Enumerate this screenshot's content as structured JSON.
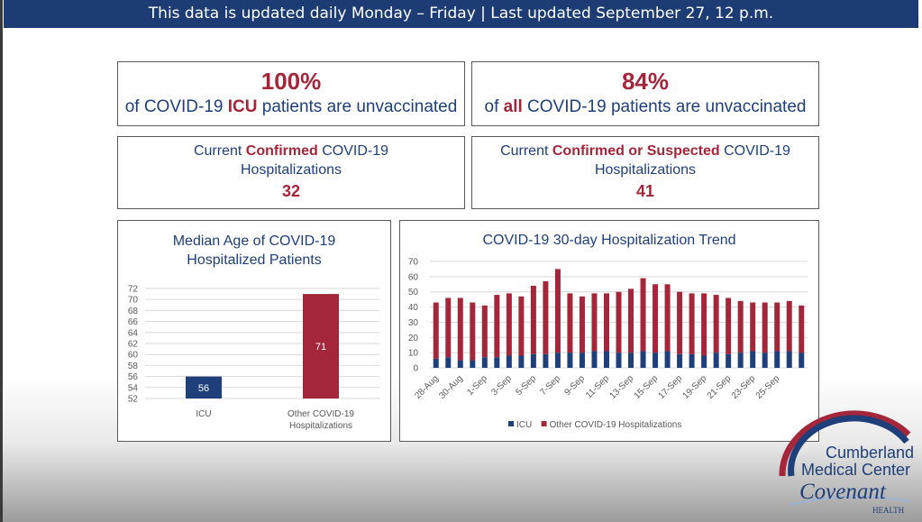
{
  "banner": {
    "text": "This data is updated daily Monday – Friday | Last updated September 27, 12 p.m."
  },
  "stats": {
    "icu_unvax": {
      "value": "100%",
      "pre": "of COVID-19 ",
      "emph": "ICU",
      "post": " patients are unvaccinated"
    },
    "all_unvax": {
      "value": "84%",
      "pre": "of ",
      "emph": "all",
      "post": " COVID-19 patients are unvaccinated"
    },
    "confirmed": {
      "pre": "Current ",
      "emph": "Confirmed",
      "post": " COVID-19",
      "line2": "Hospitalizations",
      "value": "32"
    },
    "suspected": {
      "pre": "Current ",
      "emph": "Confirmed or Suspected",
      "post": " COVID-19",
      "line2": "Hospitalizations",
      "value": "41"
    }
  },
  "colors": {
    "navy": "#1f3f7a",
    "crimson": "#a3263a",
    "banner": "#1c3c73"
  },
  "chart_data": [
    {
      "type": "bar",
      "title": "Median Age of COVID-19 Hospitalized Patients",
      "title_lines": [
        "Median Age of COVID-19",
        "Hospitalized Patients"
      ],
      "categories": [
        "ICU",
        "Other COVID-19 Hospitalizations"
      ],
      "category_lines": [
        [
          "ICU"
        ],
        [
          "Other COVID-19",
          "Hospitalizations"
        ]
      ],
      "values": [
        56,
        71
      ],
      "data_labels": [
        "56",
        "71"
      ],
      "ylim": [
        52,
        72
      ],
      "yticks": [
        52,
        54,
        56,
        58,
        60,
        62,
        64,
        66,
        68,
        70,
        72
      ],
      "grid": true,
      "bar_colors": [
        "#1f3f7a",
        "#a3263a"
      ]
    },
    {
      "type": "bar",
      "stacked": true,
      "title": "COVID-19 30-day Hospitalization Trend",
      "x": [
        "28-Aug",
        "29-Aug",
        "30-Aug",
        "31-Aug",
        "1-Sep",
        "2-Sep",
        "3-Sep",
        "4-Sep",
        "5-Sep",
        "6-Sep",
        "7-Sep",
        "8-Sep",
        "9-Sep",
        "10-Sep",
        "11-Sep",
        "12-Sep",
        "13-Sep",
        "14-Sep",
        "15-Sep",
        "16-Sep",
        "17-Sep",
        "18-Sep",
        "19-Sep",
        "20-Sep",
        "21-Sep",
        "22-Sep",
        "23-Sep",
        "24-Sep",
        "25-Sep",
        "26-Sep",
        "27-Sep"
      ],
      "x_tick_labels": [
        "28-Aug",
        "30-Aug",
        "1-Sep",
        "3-Sep",
        "5-Sep",
        "7-Sep",
        "9-Sep",
        "11-Sep",
        "13-Sep",
        "15-Sep",
        "17-Sep",
        "19-Sep",
        "21-Sep",
        "23-Sep",
        "25-Sep"
      ],
      "series": [
        {
          "name": "ICU",
          "color": "#1f3f7a",
          "values": [
            6,
            7,
            5,
            5,
            7,
            7,
            8,
            8,
            9,
            9,
            10,
            10,
            10,
            11,
            11,
            10,
            10,
            11,
            10,
            11,
            9,
            9,
            8,
            10,
            9,
            10,
            11,
            10,
            11,
            11,
            10
          ]
        },
        {
          "name": "Other COVID-19 Hospitalizations",
          "color": "#a3263a",
          "values": [
            37,
            39,
            41,
            38,
            34,
            41,
            41,
            39,
            45,
            48,
            55,
            39,
            37,
            38,
            38,
            40,
            42,
            48,
            45,
            44,
            41,
            40,
            41,
            38,
            37,
            34,
            32,
            33,
            32,
            33,
            31
          ]
        }
      ],
      "ylim": [
        0,
        70
      ],
      "yticks": [
        0,
        10,
        20,
        30,
        40,
        50,
        60,
        70
      ],
      "grid": true,
      "legend": "bottom"
    }
  ],
  "logo": {
    "line1": "Cumberland",
    "line2": "Medical Center",
    "brand": "Covenant",
    "sub": "HEALTH"
  }
}
